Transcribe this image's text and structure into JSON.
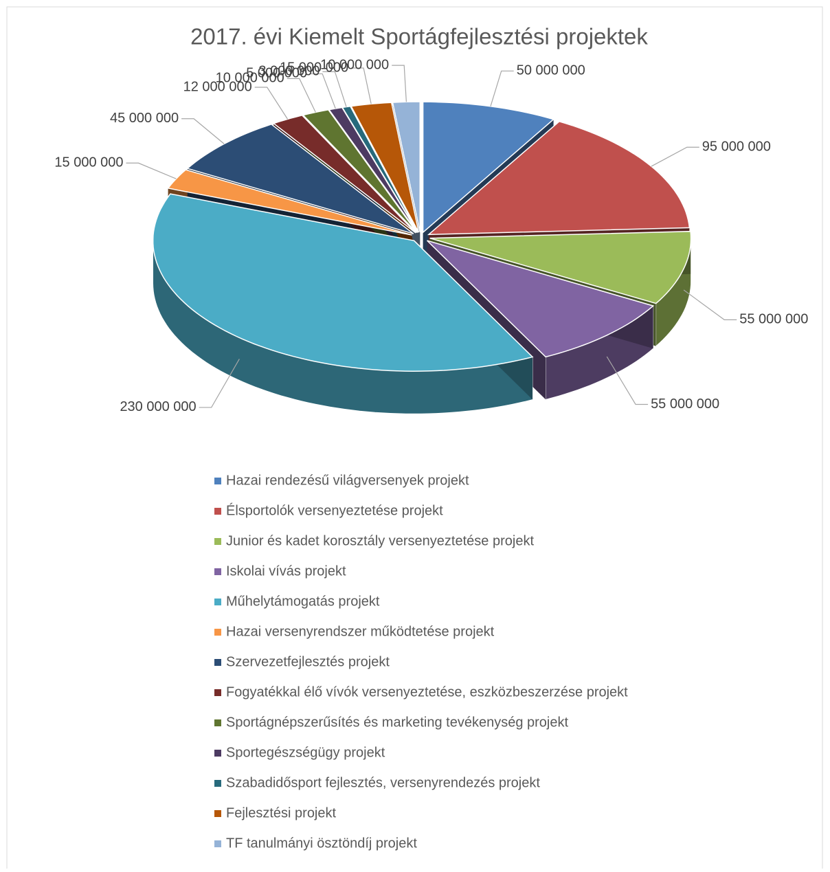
{
  "chart_data": {
    "type": "pie3d",
    "title": "2017. évi Kiemelt Sportágfejlesztési projektek",
    "categories": [
      "Hazai rendezésű világversenyek projekt",
      "Élsportolók versenyeztetése projekt",
      "Junior és kadet korosztály versenyeztetése projekt",
      "Iskolai vívás projekt",
      "Műhelytámogatás projekt",
      "Hazai versenyrendszer működtetése projekt",
      "Szervezetfejlesztés projekt",
      "Fogyatékkal élő vívók versenyeztetése, eszközbeszerzése projekt",
      "Sportágnépszerűsítés és marketing tevékenység projekt",
      "Sportegészségügy projekt",
      "Szabadidősport fejlesztés, versenyrendezés projekt",
      "Fejlesztési projekt",
      "TF tanulmányi ösztöndíj projekt"
    ],
    "values": [
      50000000,
      95000000,
      55000000,
      55000000,
      230000000,
      15000000,
      45000000,
      12000000,
      10000000,
      5000000,
      3000000,
      15000000,
      10000000
    ],
    "value_labels": [
      "50 000 000",
      "95 000 000",
      "55 000 000",
      "55 000 000",
      "230 000 000",
      "15 000 000",
      "45 000 000",
      "12 000 000",
      "10 000 000",
      "5 000 000",
      "3 000 000",
      "15 000 000",
      "10 000 000"
    ],
    "colors": [
      "#4f81bd",
      "#c0504d",
      "#9bbb59",
      "#8064a2",
      "#4bacc6",
      "#f79646",
      "#2c4d75",
      "#772c2a",
      "#5f7530",
      "#4d3b62",
      "#276a7c",
      "#b65708",
      "#95b3d7"
    ],
    "legend": "bottom"
  }
}
